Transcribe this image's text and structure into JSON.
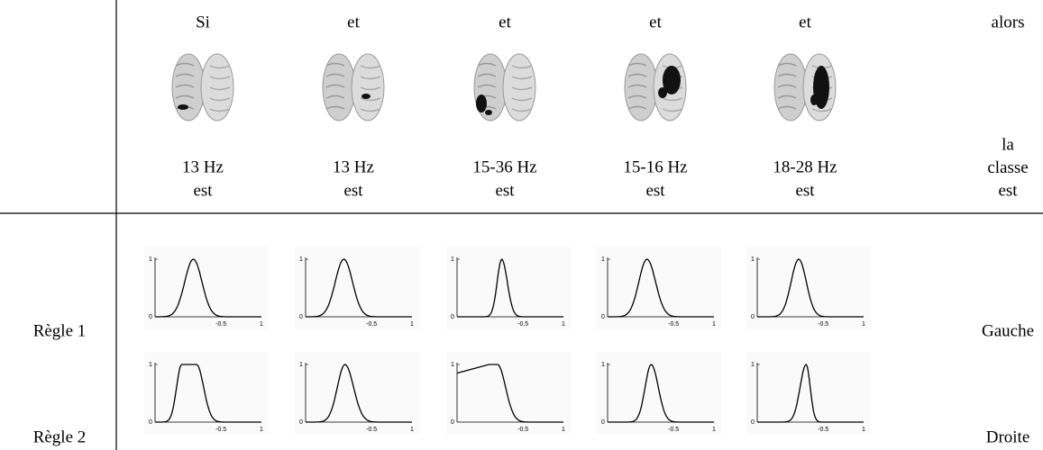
{
  "header": {
    "connectors": [
      "Si",
      "et",
      "et",
      "et",
      "et",
      "alors"
    ],
    "frequencies": [
      "13 Hz",
      "13 Hz",
      "15-36 Hz",
      "15-16 Hz",
      "18-28 Hz"
    ],
    "verb": "est",
    "conclusion": [
      "la",
      "classe",
      "est"
    ]
  },
  "plot_axis": {
    "y_top": "1",
    "y_bottom": "0",
    "x_mid": "-0.5",
    "x_right": "1"
  },
  "rules": [
    {
      "label": "Règle 1",
      "class": "Gauche"
    },
    {
      "label": "Règle 2",
      "class": "Droite"
    }
  ]
}
